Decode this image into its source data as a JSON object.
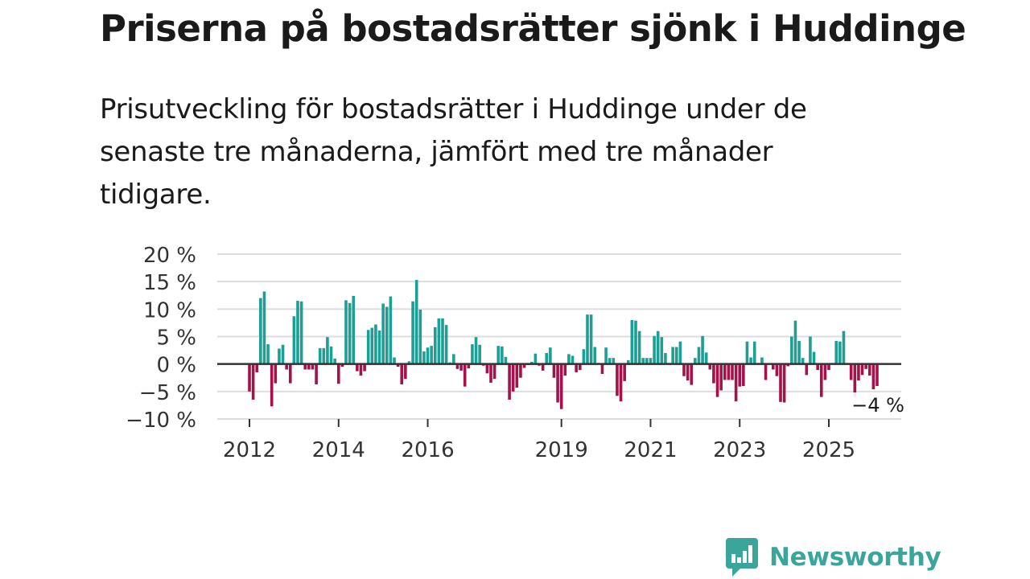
{
  "title": "Priserna på bostadsrätter sjönk i Huddinge",
  "subtitle": "Prisutveckling för bostadsrätter i Huddinge under de senaste tre månaderna, jämfört med tre månader tidigare.",
  "brand": {
    "name": "Newsworthy",
    "color": "#3aa59a"
  },
  "colors": {
    "positive": "#1e9e94",
    "negative": "#a3124a",
    "grid": "#dddddd",
    "zero_line": "#333333"
  },
  "chart_data": {
    "type": "bar",
    "ylabel": "",
    "xlabel": "",
    "ylim": [
      -10,
      20
    ],
    "yticks": [
      20,
      15,
      10,
      5,
      0,
      -5,
      -10
    ],
    "ytick_labels": [
      "20 %",
      "15 %",
      "10 %",
      "5 %",
      "0 %",
      "−5 %",
      "−10 %"
    ],
    "x_start": 2012.0,
    "x_step_months": 1,
    "xticks": [
      2012,
      2014,
      2016,
      2019,
      2021,
      2023,
      2025
    ],
    "xtick_labels": [
      "2012",
      "2014",
      "2016",
      "2019",
      "2021",
      "2023",
      "2025"
    ],
    "last_value_label": "−4 %",
    "grid": true,
    "values": [
      -5,
      -6.5,
      -1.5,
      12,
      13.2,
      3.6,
      -7.7,
      -3.5,
      2.8,
      3.5,
      -1,
      -3.5,
      8.7,
      11.5,
      11.4,
      -1,
      -1,
      -1,
      -3.7,
      2.9,
      2.9,
      4.9,
      3.2,
      1,
      -3.6,
      -0.5,
      11.6,
      11.1,
      12.4,
      -1.3,
      -2.1,
      -1.3,
      6.2,
      6.6,
      7.2,
      6.1,
      11,
      10.4,
      12.3,
      1.2,
      -0.5,
      -3.7,
      -2.7,
      0.5,
      11.4,
      15.3,
      9.9,
      2.3,
      3,
      3.3,
      6.7,
      8.3,
      8.3,
      7.1,
      0.3,
      1.8,
      -0.9,
      -1.2,
      -4.1,
      -0.8,
      3.6,
      4.9,
      3.5,
      -0.3,
      -1.7,
      -3.4,
      -2.7,
      3.3,
      3.2,
      1.3,
      -6.5,
      -5,
      -4.3,
      -2.5,
      -0.7,
      -0.2,
      0.4,
      1.9,
      -0.3,
      -1.2,
      2,
      3,
      -2.5,
      -7,
      -8.2,
      -2.1,
      1.8,
      1.5,
      -1.5,
      -1.1,
      2.7,
      9,
      9,
      3.1,
      0.2,
      -1.8,
      3,
      1.1,
      1.1,
      -5.8,
      -6.8,
      -3.1,
      0.7,
      8,
      7.9,
      6,
      1.1,
      1.1,
      1.1,
      5.1,
      6,
      4.9,
      2,
      0.2,
      3.1,
      3.1,
      4.1,
      -2.2,
      -3,
      -3.8,
      1.1,
      3.1,
      5.1,
      2.1,
      -1,
      -3.5,
      -6,
      -4.8,
      -2.9,
      -2.9,
      -2.9,
      -6.8,
      -4.1,
      -4,
      4.1,
      1.2,
      4.1,
      0.2,
      1.2,
      -2.9,
      -0.1,
      -1,
      -2.2,
      -6.9,
      -7,
      -0.4,
      5,
      7.9,
      4.2,
      1.1,
      -2,
      5,
      2.2,
      -1.1,
      -6,
      -2.9,
      -1.1,
      0.2,
      4.2,
      4.1,
      6,
      0.2,
      -2.9,
      -6,
      -3,
      -2,
      -0.9,
      -2.1,
      -4.6,
      -4
    ]
  }
}
